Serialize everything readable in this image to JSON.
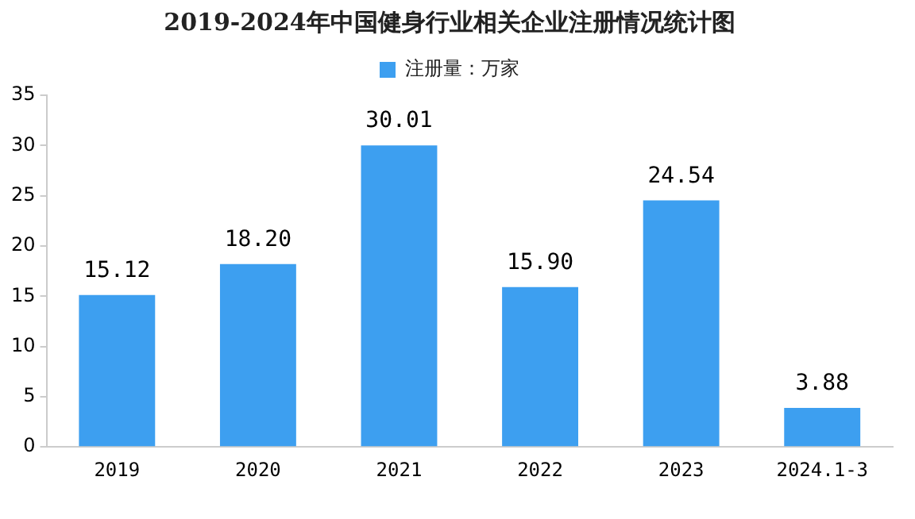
{
  "chart_data": {
    "type": "bar",
    "title": "2019-2024年中国健身行业相关企业注册情况统计图",
    "categories": [
      "2019",
      "2020",
      "2021",
      "2022",
      "2023",
      "2024.1-3"
    ],
    "series": [
      {
        "name": "注册量：万家",
        "color": "#3d9ff0",
        "values": [
          15.12,
          18.2,
          30.01,
          15.9,
          24.54,
          3.88
        ],
        "value_labels": [
          "15.12",
          "18.20",
          "30.01",
          "15.90",
          "24.54",
          "3.88"
        ]
      }
    ],
    "ylim": [
      0,
      35
    ],
    "yticks": [
      0,
      5,
      10,
      15,
      20,
      25,
      30,
      35
    ],
    "grid": false,
    "legend": "top"
  }
}
